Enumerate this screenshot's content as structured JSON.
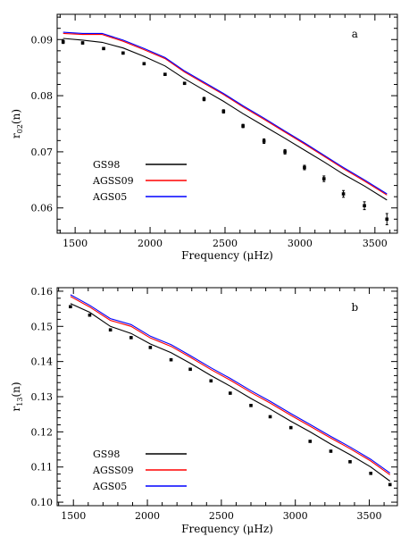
{
  "chart_data": [
    {
      "type": "line",
      "panel_label": "a",
      "xlabel": "Frequency (μHz)",
      "ylabel": "r02(n)",
      "ylabel_main": "r",
      "ylabel_sub": "02",
      "ylabel_paren": "(n)",
      "xlim": [
        1380,
        3650
      ],
      "ylim": [
        0.0555,
        0.0945
      ],
      "xticks": [
        1500,
        2000,
        2500,
        3000,
        3500
      ],
      "yticks": [
        0.06,
        0.07,
        0.08,
        0.09
      ],
      "ytick_labels": [
        "0.06",
        "0.07",
        "0.08",
        "0.09"
      ],
      "grid": false,
      "legend_position": "lower-left",
      "series": [
        {
          "name": "GS98",
          "color": "#000000",
          "x": [
            1420,
            1550,
            1680,
            1820,
            1960,
            2100,
            2230,
            2360,
            2490,
            2620,
            2760,
            2900,
            3030,
            3160,
            3290,
            3430,
            3580
          ],
          "y": [
            0.0902,
            0.0899,
            0.0895,
            0.0885,
            0.087,
            0.0853,
            0.083,
            0.081,
            0.079,
            0.0768,
            0.0746,
            0.0724,
            0.0703,
            0.0682,
            0.066,
            0.0639,
            0.0614
          ]
        },
        {
          "name": "AGSS09",
          "color": "#ff0000",
          "x": [
            1420,
            1550,
            1680,
            1820,
            1960,
            2100,
            2230,
            2360,
            2490,
            2620,
            2760,
            2900,
            3030,
            3160,
            3290,
            3430,
            3580
          ],
          "y": [
            0.0911,
            0.0909,
            0.0909,
            0.0897,
            0.0882,
            0.0866,
            0.0842,
            0.0822,
            0.0802,
            0.078,
            0.0758,
            0.0735,
            0.0714,
            0.0692,
            0.067,
            0.0648,
            0.0623
          ]
        },
        {
          "name": "AGS05",
          "color": "#0000ff",
          "x": [
            1420,
            1550,
            1680,
            1820,
            1960,
            2100,
            2230,
            2360,
            2490,
            2620,
            2760,
            2900,
            3030,
            3160,
            3290,
            3430,
            3580
          ],
          "y": [
            0.0913,
            0.0911,
            0.0911,
            0.0899,
            0.0884,
            0.0868,
            0.0844,
            0.0824,
            0.0804,
            0.0782,
            0.076,
            0.0737,
            0.0716,
            0.0694,
            0.0672,
            0.065,
            0.0625
          ]
        }
      ],
      "observations": {
        "x": [
          1420,
          1550,
          1690,
          1820,
          1960,
          2100,
          2230,
          2360,
          2490,
          2620,
          2760,
          2900,
          3030,
          3160,
          3290,
          3430,
          3580
        ],
        "y": [
          0.0896,
          0.0894,
          0.0884,
          0.0876,
          0.0857,
          0.0838,
          0.0822,
          0.0794,
          0.0772,
          0.0746,
          0.0719,
          0.07,
          0.0672,
          0.0652,
          0.0625,
          0.0604,
          0.058
        ],
        "err": [
          0.0003,
          0.0002,
          0.0002,
          0.0002,
          0.0002,
          0.0002,
          0.0002,
          0.0003,
          0.0003,
          0.0003,
          0.0004,
          0.0004,
          0.0004,
          0.0005,
          0.0006,
          0.0007,
          0.001
        ]
      }
    },
    {
      "type": "line",
      "panel_label": "b",
      "xlabel": "Frequency (μHz)",
      "ylabel": "r13(n)",
      "ylabel_main": "r",
      "ylabel_sub": "13",
      "ylabel_paren": "(n)",
      "xlim": [
        1390,
        3690
      ],
      "ylim": [
        0.099,
        0.161
      ],
      "xticks": [
        1500,
        2000,
        2500,
        3000,
        3500
      ],
      "yticks": [
        0.1,
        0.11,
        0.12,
        0.13,
        0.14,
        0.15,
        0.16
      ],
      "ytick_labels": [
        "0.10",
        "0.11",
        "0.12",
        "0.13",
        "0.14",
        "0.15",
        "0.16"
      ],
      "grid": false,
      "legend_position": "lower-left",
      "series": [
        {
          "name": "GS98",
          "color": "#000000",
          "x": [
            1480,
            1610,
            1750,
            1890,
            2020,
            2160,
            2290,
            2430,
            2560,
            2700,
            2830,
            2970,
            3100,
            3240,
            3370,
            3510,
            3640
          ],
          "y": [
            0.1565,
            0.154,
            0.15,
            0.148,
            0.145,
            0.1425,
            0.1395,
            0.136,
            0.133,
            0.1295,
            0.1265,
            0.123,
            0.12,
            0.1165,
            0.1135,
            0.11,
            0.106
          ]
        },
        {
          "name": "AGSS09",
          "color": "#ff0000",
          "x": [
            1480,
            1610,
            1750,
            1890,
            2020,
            2160,
            2290,
            2430,
            2560,
            2700,
            2830,
            2970,
            3100,
            3240,
            3370,
            3510,
            3640
          ],
          "y": [
            0.1585,
            0.1555,
            0.1517,
            0.15,
            0.1467,
            0.1443,
            0.1412,
            0.1377,
            0.1347,
            0.1312,
            0.1282,
            0.1247,
            0.1216,
            0.1182,
            0.1152,
            0.1117,
            0.1078
          ]
        },
        {
          "name": "AGS05",
          "color": "#0000ff",
          "x": [
            1480,
            1610,
            1750,
            1890,
            2020,
            2160,
            2290,
            2430,
            2560,
            2700,
            2830,
            2970,
            3100,
            3240,
            3370,
            3510,
            3640
          ],
          "y": [
            0.159,
            0.156,
            0.1522,
            0.1505,
            0.1472,
            0.1448,
            0.1417,
            0.1382,
            0.1352,
            0.1317,
            0.1287,
            0.1252,
            0.1221,
            0.1187,
            0.1157,
            0.1122,
            0.1083
          ]
        }
      ],
      "observations": {
        "x": [
          1480,
          1610,
          1750,
          1890,
          2020,
          2160,
          2290,
          2430,
          2560,
          2700,
          2830,
          2970,
          3100,
          3240,
          3370,
          3510,
          3640
        ],
        "y": [
          0.1556,
          0.1532,
          0.149,
          0.1468,
          0.144,
          0.1405,
          0.1378,
          0.1345,
          0.131,
          0.1275,
          0.1243,
          0.1212,
          0.1173,
          0.1145,
          0.1115,
          0.1082,
          0.105
        ]
      }
    }
  ]
}
